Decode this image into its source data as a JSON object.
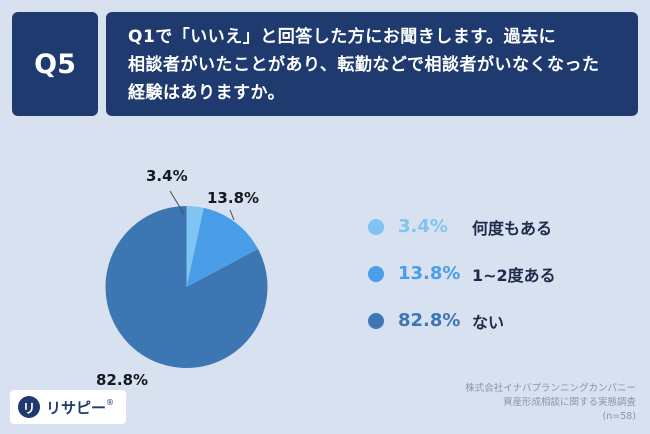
{
  "palette": {
    "background": "#d8e1ef",
    "panel_navy": "#1f3a6e",
    "legend_text": "#1c2b4a",
    "source_text": "#8b94a7"
  },
  "header": {
    "q_label": "Q5",
    "question_lines": [
      "Q1で「いいえ」と回答した方にお聞きします。過去に",
      "相談者がいたことがあり、転勤などで相談者がいなくなった",
      "経験はありますか。"
    ]
  },
  "chart_data": {
    "type": "pie",
    "labels": [
      "何度もある",
      "1~2度ある",
      "ない"
    ],
    "values": [
      3.4,
      13.8,
      82.8
    ],
    "value_labels": [
      "3.4%",
      "13.8%",
      "82.8%"
    ],
    "colors": [
      "#7fc4f2",
      "#4a9de8",
      "#3c77b4"
    ],
    "start_angle": -90,
    "direction": "clockwise",
    "legend_position": "right",
    "n": 58
  },
  "legend": {
    "items": [
      {
        "pct": "3.4%",
        "label": "何度もある",
        "color": "#7fc4f2"
      },
      {
        "pct": "13.8%",
        "label": "1~2度ある",
        "color": "#4a9de8"
      },
      {
        "pct": "82.8%",
        "label": "ない",
        "color": "#3c77b4"
      }
    ]
  },
  "footer": {
    "logo_icon_glyph": "リ",
    "logo_text": "リサピー",
    "logo_reg_mark": "®",
    "source_lines": [
      "株式会社イナバプランニングカンパニー",
      "資産形成相談に関する実態調査",
      "(n=58)"
    ]
  }
}
